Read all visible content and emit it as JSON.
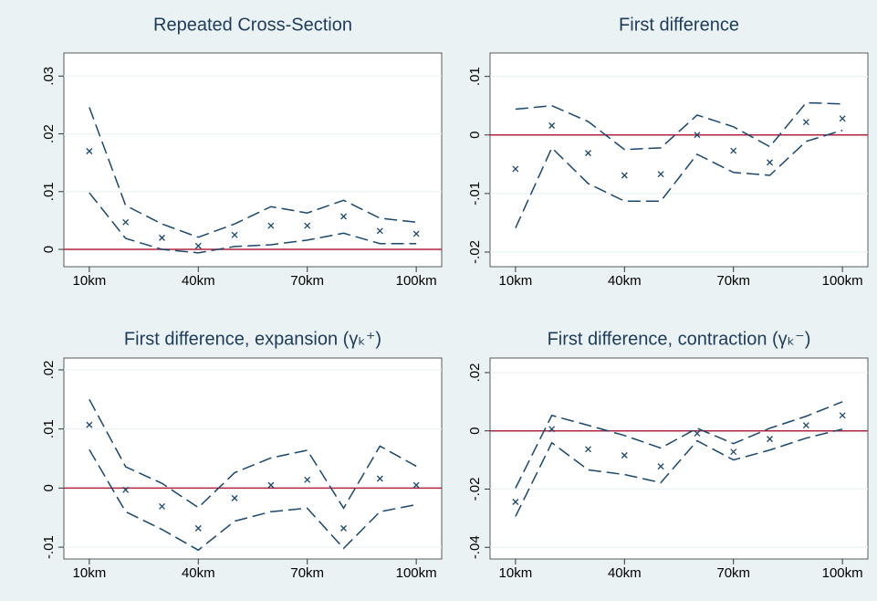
{
  "chart_data": [
    {
      "type": "line",
      "title": "Repeated Cross-Section",
      "x": [
        10,
        20,
        30,
        40,
        50,
        60,
        70,
        80,
        90,
        100
      ],
      "xlim": [
        3,
        107
      ],
      "xticks": [
        {
          "value": 10,
          "label": "10km"
        },
        {
          "value": 40,
          "label": "40km"
        },
        {
          "value": 70,
          "label": "70km"
        },
        {
          "value": 100,
          "label": "100km"
        }
      ],
      "ylim": [
        -0.003,
        0.034
      ],
      "yticks": [
        0,
        {
          "value": 0.01,
          "label": ".01"
        },
        {
          "value": 0.02,
          "label": ".02"
        },
        {
          "value": 0.03,
          "label": ".03"
        }
      ],
      "grid": true,
      "reference_line": 0,
      "reference_color": "#b2253f",
      "series": [
        {
          "color": "#1a476f",
          "marker": "x",
          "values": [
            0.017,
            0.0047,
            0.002,
            0.0006,
            0.0025,
            0.0041,
            0.0041,
            0.0057,
            0.0032,
            0.0027
          ]
        },
        {
          "color": "#1a476f",
          "dash": true,
          "values": [
            0.0246,
            0.0076,
            0.0044,
            0.0021,
            0.0044,
            0.0074,
            0.0063,
            0.0085,
            0.0054,
            0.0047
          ]
        },
        {
          "color": "#1a476f",
          "dash": true,
          "values": [
            0.0098,
            0.0019,
            0,
            -0.0006,
            0.0005,
            0.0008,
            0.0016,
            0.0028,
            0.001,
            0.001
          ]
        }
      ]
    },
    {
      "type": "line",
      "title": "First difference",
      "x": [
        10,
        20,
        30,
        40,
        50,
        60,
        70,
        80,
        90,
        100
      ],
      "xlim": [
        3,
        107
      ],
      "xticks": [
        {
          "value": 10,
          "label": "10km"
        },
        {
          "value": 40,
          "label": "40km"
        },
        {
          "value": 70,
          "label": "70km"
        },
        {
          "value": 100,
          "label": "100km"
        }
      ],
      "ylim": [
        -0.0225,
        0.014
      ],
      "yticks": [
        {
          "value": -0.02,
          "label": "-.02"
        },
        {
          "value": -0.01,
          "label": "-.01"
        },
        0,
        {
          "value": 0.01,
          "label": ".01"
        }
      ],
      "grid": true,
      "reference_line": 0,
      "reference_color": "#b2253f",
      "series": [
        {
          "color": "#1a476f",
          "marker": "x",
          "values": [
            -0.0058,
            0.0016,
            -0.0031,
            -0.0069,
            -0.0067,
            0,
            -0.0027,
            -0.0047,
            0.0022,
            0.0028
          ]
        },
        {
          "color": "#1a476f",
          "dash": true,
          "values": [
            0.0044,
            0.005,
            0.0023,
            -0.0025,
            -0.0022,
            0.0034,
            0.0014,
            -0.002,
            0.0055,
            0.0053
          ]
        },
        {
          "color": "#1a476f",
          "dash": true,
          "values": [
            -0.0159,
            -0.0022,
            -0.0083,
            -0.0113,
            -0.0113,
            -0.0033,
            -0.0064,
            -0.0069,
            -0.0011,
            0.0008
          ]
        }
      ]
    },
    {
      "type": "line",
      "title": "First difference, expansion (γₖ⁺)",
      "x": [
        10,
        20,
        30,
        40,
        50,
        60,
        70,
        80,
        90,
        100
      ],
      "xlim": [
        3,
        107
      ],
      "xticks": [
        {
          "value": 10,
          "label": "10km"
        },
        {
          "value": 40,
          "label": "40km"
        },
        {
          "value": 70,
          "label": "70km"
        },
        {
          "value": 100,
          "label": "100km"
        }
      ],
      "ylim": [
        -0.012,
        0.022
      ],
      "yticks": [
        {
          "value": -0.01,
          "label": "-.01"
        },
        0,
        {
          "value": 0.01,
          "label": ".01"
        },
        {
          "value": 0.02,
          "label": ".02"
        }
      ],
      "grid": true,
      "reference_line": 0,
      "reference_color": "#b2253f",
      "series": [
        {
          "color": "#1a476f",
          "marker": "x",
          "values": [
            0.0107,
            -0.0003,
            -0.0031,
            -0.0068,
            -0.0017,
            0.0005,
            0.0014,
            -0.0068,
            0.0016,
            0.0005
          ]
        },
        {
          "color": "#1a476f",
          "dash": true,
          "values": [
            0.015,
            0.0036,
            0.0008,
            -0.0033,
            0.0026,
            0.0051,
            0.0064,
            -0.0034,
            0.0071,
            0.0037
          ]
        },
        {
          "color": "#1a476f",
          "dash": true,
          "values": [
            0.0065,
            -0.004,
            -0.007,
            -0.0105,
            -0.0056,
            -0.004,
            -0.0034,
            -0.0102,
            -0.004,
            -0.0028
          ]
        }
      ]
    },
    {
      "type": "line",
      "title": "First difference, contraction (γₖ⁻)",
      "x": [
        10,
        20,
        30,
        40,
        50,
        60,
        70,
        80,
        90,
        100
      ],
      "xlim": [
        3,
        107
      ],
      "xticks": [
        {
          "value": 10,
          "label": "10km"
        },
        {
          "value": 40,
          "label": "40km"
        },
        {
          "value": 70,
          "label": "70km"
        },
        {
          "value": 100,
          "label": "100km"
        }
      ],
      "ylim": [
        -0.044,
        0.025
      ],
      "yticks": [
        {
          "value": -0.04,
          "label": "-.04"
        },
        {
          "value": -0.02,
          "label": "-.02"
        },
        0,
        {
          "value": 0.02,
          "label": ".02"
        }
      ],
      "grid": true,
      "reference_line": 0,
      "reference_color": "#b2253f",
      "series": [
        {
          "color": "#1a476f",
          "marker": "x",
          "values": [
            -0.0244,
            0.0006,
            -0.0063,
            -0.0084,
            -0.0122,
            -0.0009,
            -0.0072,
            -0.0028,
            0.0019,
            0.0053
          ]
        },
        {
          "color": "#1a476f",
          "dash": true,
          "values": [
            -0.0197,
            0.0053,
            0.0019,
            -0.0016,
            -0.0059,
            0.0009,
            -0.0044,
            0.0009,
            0.005,
            0.01
          ]
        },
        {
          "color": "#1a476f",
          "dash": true,
          "values": [
            -0.0294,
            -0.0041,
            -0.0134,
            -0.015,
            -0.0178,
            -0.0034,
            -0.01,
            -0.0066,
            -0.0025,
            0.0006
          ]
        }
      ]
    }
  ]
}
